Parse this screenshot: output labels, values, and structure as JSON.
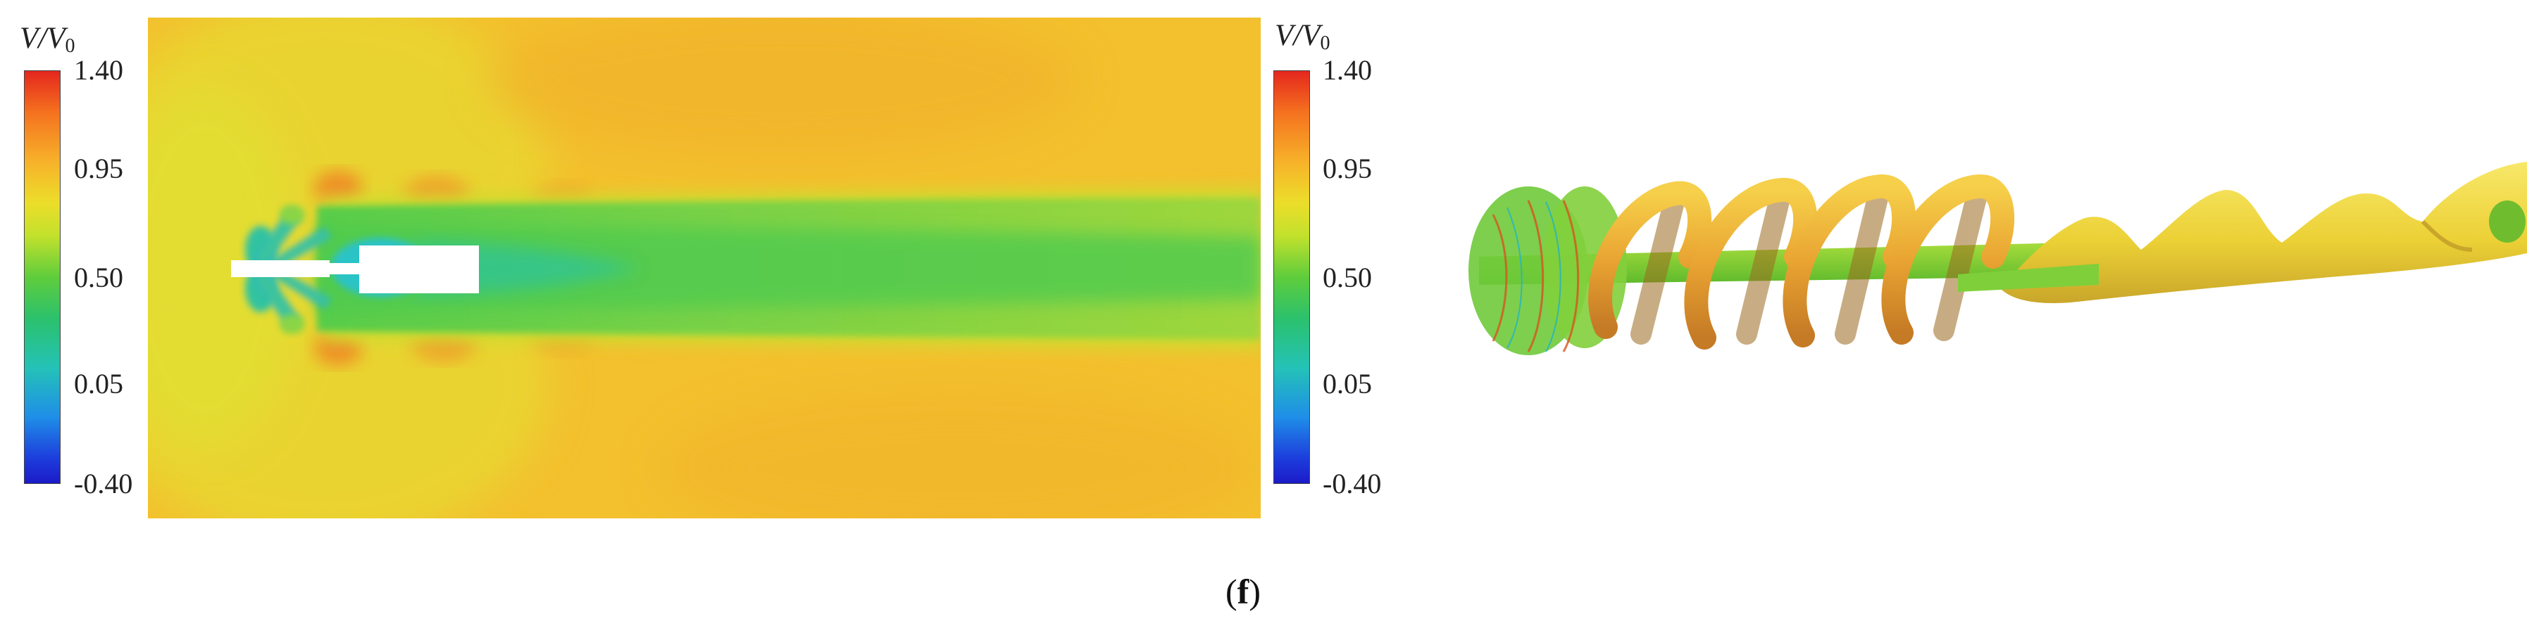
{
  "figure": {
    "caption_open": "(",
    "caption_letter": "f",
    "caption_close": ")"
  },
  "contour_panel": {
    "colorbar": {
      "title_main": "V/V",
      "title_sub": "0",
      "ticks": [
        "1.40",
        "0.95",
        "0.50",
        "0.05",
        "-0.40"
      ],
      "colors_top_to_bottom": [
        "#e4271e",
        "#f7b22a",
        "#ecde2a",
        "#5fcd3c",
        "#24c2b7",
        "#1f8ee8",
        "#1b1bc8"
      ]
    }
  },
  "isosurface_panel": {
    "colorbar": {
      "title_main": "V/V",
      "title_sub": "0",
      "ticks": [
        "1.40",
        "0.95",
        "0.50",
        "0.05",
        "-0.40"
      ]
    }
  }
}
